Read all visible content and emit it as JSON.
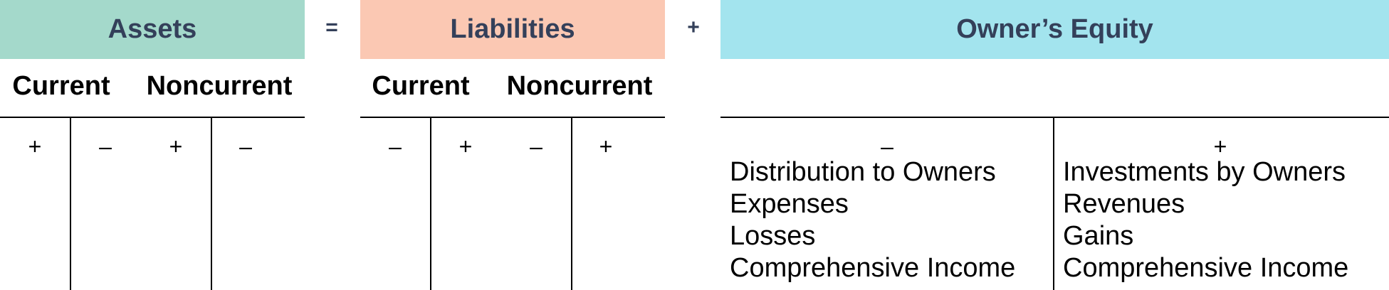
{
  "headers": {
    "assets": "Assets",
    "liabilities": "Liabilities",
    "equity": "Owner’s Equity"
  },
  "operators": {
    "equals": "=",
    "plus": "+"
  },
  "colors": {
    "assets_bg": "#a4d9cb",
    "liabilities_bg": "#fbc8b3",
    "equity_bg": "#a3e4ee",
    "header_text": "#34405a"
  },
  "assets": {
    "current": {
      "label": "Current",
      "debit": "+",
      "credit": "–"
    },
    "noncurrent": {
      "label": "Noncurrent",
      "debit": "+",
      "credit": "–"
    }
  },
  "liabilities": {
    "current": {
      "label": "Current",
      "debit": "–",
      "credit": "+"
    },
    "noncurrent": {
      "label": "Noncurrent",
      "debit": "–",
      "credit": "+"
    }
  },
  "equity": {
    "debit_sign": "–",
    "credit_sign": "+",
    "debit_items": [
      "Distribution to Owners",
      "Expenses",
      "Losses",
      "Comprehensive Income"
    ],
    "credit_items": [
      "Investments by Owners",
      "Revenues",
      "Gains",
      "Comprehensive Income"
    ]
  }
}
